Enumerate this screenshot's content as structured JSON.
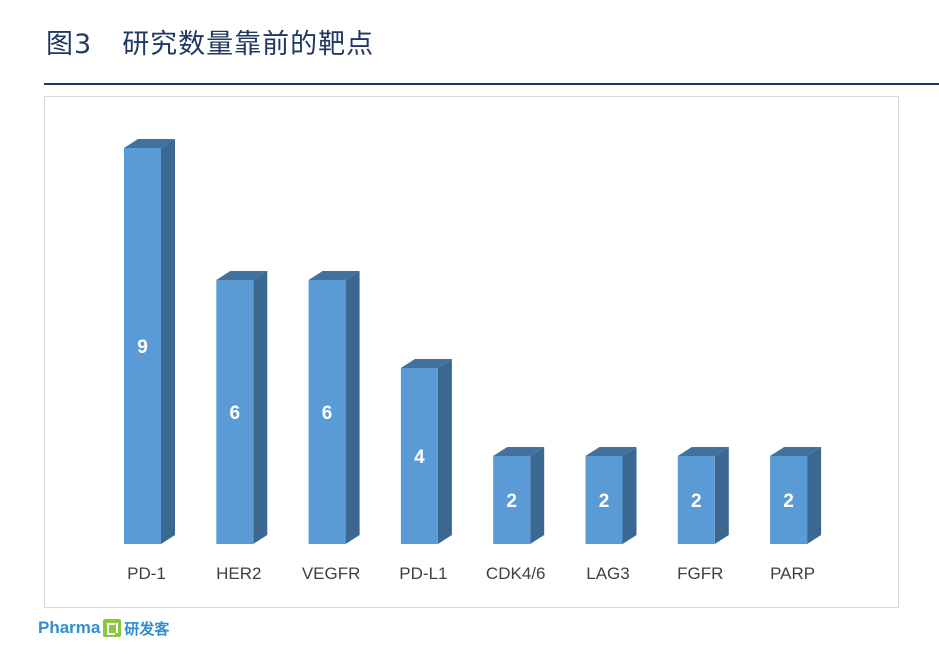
{
  "title": {
    "figure_number": "图3",
    "text": "研究数量靠前的靶点"
  },
  "chart_data": {
    "type": "bar",
    "style": "3d-column",
    "categories": [
      "PD-1",
      "HER2",
      "VEGFR",
      "PD-L1",
      "CDK4/6",
      "LAG3",
      "FGFR",
      "PARP"
    ],
    "series": [
      {
        "values": [
          9,
          6,
          6,
          4,
          2,
          2,
          2,
          2
        ]
      }
    ],
    "data_labels": [
      "9",
      "6",
      "6",
      "4",
      "2",
      "2",
      "2",
      "2"
    ],
    "ylim": [
      0,
      9
    ],
    "grid": false,
    "legend": "none",
    "colors": {
      "bar_front": "#5b9bd5",
      "bar_side": "#3a6891",
      "bar_top": "#41719c",
      "label_text": "#ffffff",
      "axis_text": "#404040"
    }
  },
  "logo": {
    "brand": "Pharma",
    "cn": "研发客",
    "mark_icon": "pharmacube-logo-icon"
  }
}
